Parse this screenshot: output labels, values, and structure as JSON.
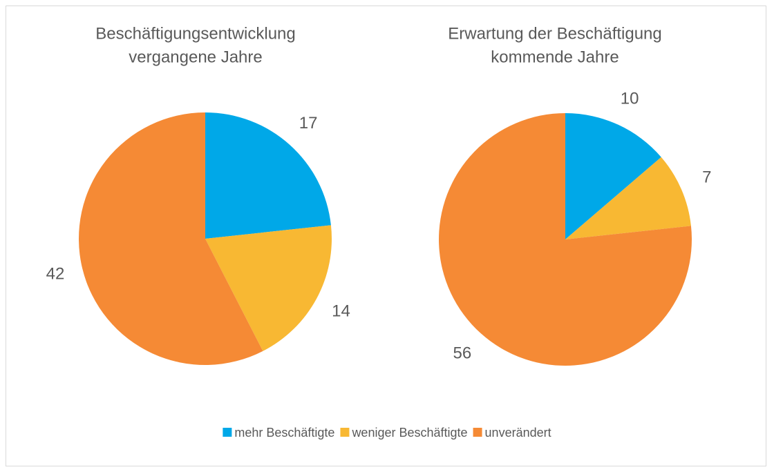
{
  "chart_data": [
    {
      "type": "pie",
      "title": [
        "Beschäftigungsentwicklung",
        "vergangene Jahre"
      ],
      "categories": [
        "mehr Beschäftigte",
        "weniger Beschäftigte",
        "unverändert"
      ],
      "values": [
        17,
        14,
        42
      ],
      "colors": [
        "#00a8e8",
        "#f8b833",
        "#f58a35"
      ],
      "legend": "bottom"
    },
    {
      "type": "pie",
      "title": [
        "Erwartung der Beschäftigung",
        "kommende Jahre"
      ],
      "categories": [
        "mehr Beschäftigte",
        "weniger Beschäftigte",
        "unverändert"
      ],
      "values": [
        10,
        7,
        56
      ],
      "colors": [
        "#00a8e8",
        "#f8b833",
        "#f58a35"
      ],
      "legend": "bottom"
    }
  ]
}
